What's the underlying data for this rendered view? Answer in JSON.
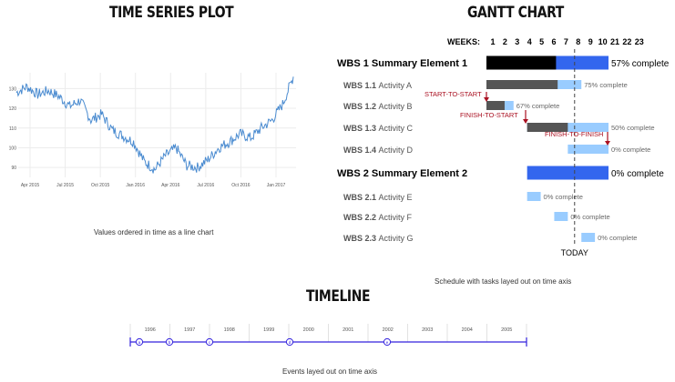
{
  "time_series": {
    "title": "TIME SERIES PLOT",
    "caption": "Values ordered in time as a line chart"
  },
  "gantt": {
    "title": "GANTT CHART",
    "caption": "Schedule with tasks layed out on time axis",
    "weeks_label": "WEEKS:",
    "weeks": [
      "1",
      "2",
      "3",
      "4",
      "5",
      "6",
      "7",
      "8",
      "9",
      "10",
      "21",
      "22",
      "23"
    ],
    "today_label": "TODAY",
    "colors": {
      "summary": "#3366ee",
      "done": "#555555",
      "remaining": "#99ccff",
      "dark": "#000000",
      "dep": "#aa1122"
    }
  },
  "timeline": {
    "title": "TIMELINE",
    "caption": "Events layed out on time axis",
    "years": [
      "1996",
      "1997",
      "1998",
      "1999",
      "2000",
      "2001",
      "2002",
      "2003",
      "2004",
      "2005"
    ],
    "event_markers": [
      "a",
      "b",
      "c",
      "d",
      "e"
    ],
    "color": "#3322dd"
  },
  "chart_data": [
    {
      "type": "line",
      "title": "",
      "xlabel": "",
      "ylabel": "",
      "x_tick_labels": [
        "Apr 2015",
        "Jul 2015",
        "Oct 2015",
        "Jan 2016",
        "Apr 2016",
        "Jul 2016",
        "Oct 2016",
        "Jan 2017"
      ],
      "y_tick_labels": [
        "90",
        "100",
        "110",
        "120",
        "130"
      ],
      "ylim": [
        85,
        138
      ],
      "grid": true,
      "series": [
        {
          "name": "",
          "x": [
            "2015-01",
            "2015-02",
            "2015-03",
            "2015-04",
            "2015-05",
            "2015-06",
            "2015-07",
            "2015-08",
            "2015-09",
            "2015-10",
            "2015-11",
            "2015-12",
            "2016-01",
            "2016-02",
            "2016-03",
            "2016-04",
            "2016-05",
            "2016-06",
            "2016-07",
            "2016-08",
            "2016-09",
            "2016-10",
            "2016-11",
            "2016-12",
            "2017-01",
            "2017-02",
            "2017-03"
          ],
          "values": [
            128,
            131,
            127,
            129,
            126,
            121,
            124,
            114,
            117,
            109,
            106,
            103,
            93,
            89,
            96,
            100,
            91,
            90,
            94,
            100,
            103,
            107,
            105,
            110,
            114,
            122,
            136
          ]
        }
      ]
    },
    {
      "type": "gantt",
      "tasks": [
        {
          "wbs": "WBS 1",
          "name": "Summary Element 1",
          "summary": true,
          "start": 1,
          "end": 10,
          "percent_complete": 57,
          "label": "57% complete"
        },
        {
          "wbs": "WBS 1.1",
          "name": "Activity A",
          "summary": false,
          "start": 1,
          "end": 8,
          "percent_complete": 75,
          "label": "75% complete"
        },
        {
          "wbs": "WBS 1.2",
          "name": "Activity B",
          "summary": false,
          "start": 1,
          "end": 3,
          "percent_complete": 67,
          "label": "67% complete"
        },
        {
          "wbs": "WBS 1.3",
          "name": "Activity C",
          "summary": false,
          "start": 4,
          "end": 10,
          "percent_complete": 50,
          "label": "50% complete"
        },
        {
          "wbs": "WBS 1.4",
          "name": "Activity D",
          "summary": false,
          "start": 7,
          "end": 10,
          "percent_complete": 0,
          "label": "0% complete"
        },
        {
          "wbs": "WBS 2",
          "name": "Summary Element 2",
          "summary": true,
          "start": 4,
          "end": 10,
          "percent_complete": 0,
          "label": "0% complete"
        },
        {
          "wbs": "WBS 2.1",
          "name": "Activity E",
          "summary": false,
          "start": 4,
          "end": 5,
          "percent_complete": 0,
          "label": "0% complete"
        },
        {
          "wbs": "WBS 2.2",
          "name": "Activity F",
          "summary": false,
          "start": 6,
          "end": 7,
          "percent_complete": 0,
          "label": "0% complete"
        },
        {
          "wbs": "WBS 2.3",
          "name": "Activity G",
          "summary": false,
          "start": 8,
          "end": 9,
          "percent_complete": 0,
          "label": "0% complete"
        }
      ],
      "dependencies": [
        {
          "label": "START-TO-START",
          "from": "WBS 1.1",
          "to": "WBS 1.2"
        },
        {
          "label": "FINISH-TO-START",
          "from": "WBS 1.2",
          "to": "WBS 1.3"
        },
        {
          "label": "FINISH-TO-FINISH",
          "from": "WBS 1.3",
          "to": "WBS 1.4"
        }
      ],
      "today_week": 7.5
    }
  ]
}
